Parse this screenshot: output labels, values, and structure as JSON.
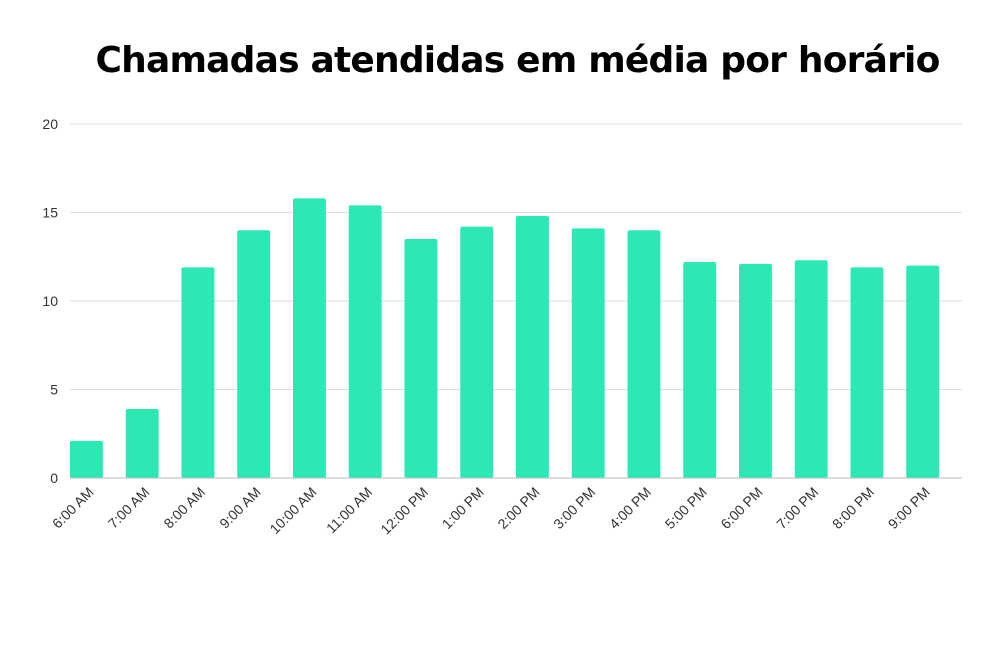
{
  "chart_data": {
    "type": "bar",
    "title": "Chamadas atendidas em média por horário",
    "xlabel": "",
    "ylabel": "",
    "categories": [
      "6:00 AM",
      "7:00 AM",
      "8:00 AM",
      "9:00 AM",
      "10:00 AM",
      "11:00 AM",
      "12:00 PM",
      "1:00 PM",
      "2:00 PM",
      "3:00 PM",
      "4:00 PM",
      "5:00 PM",
      "6:00 PM",
      "7:00 PM",
      "8:00 PM",
      "9:00 PM"
    ],
    "values": [
      2.1,
      3.9,
      11.9,
      14.0,
      15.8,
      15.4,
      13.5,
      14.2,
      14.8,
      14.1,
      14.0,
      12.2,
      12.1,
      12.3,
      11.9,
      12.0
    ],
    "ylim": [
      0,
      20
    ],
    "yticks": [
      "0",
      "5",
      "10",
      "15",
      "20"
    ],
    "grid": true,
    "legend": "none",
    "bar_color": "#2ce8b5",
    "grid_color": "#dddddd",
    "axis_color": "#bbbbbb"
  }
}
